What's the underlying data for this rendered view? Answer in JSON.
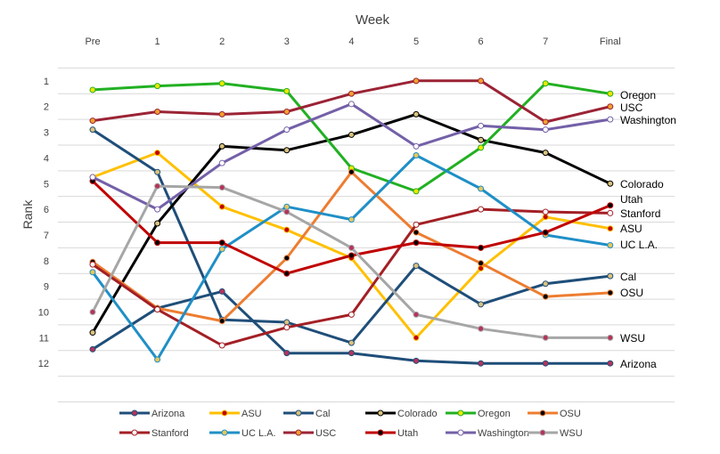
{
  "chart_data": {
    "type": "line",
    "title": "",
    "xlabel": "Week",
    "ylabel": "Rank",
    "x": [
      "Pre",
      "1",
      "2",
      "3",
      "4",
      "5",
      "6",
      "7",
      "Final"
    ],
    "yticks": [
      "1",
      "2",
      "3",
      "4",
      "5",
      "6",
      "7",
      "8",
      "9",
      "10",
      "11",
      "12"
    ],
    "ylim": [
      0.5,
      13.5
    ],
    "y_inverted": true,
    "grid": true,
    "legend_position": "bottom",
    "series": [
      {
        "name": "Arizona",
        "color": "#1f4e79",
        "marker_fill": "#b5335a",
        "end_label": "Arizona",
        "values": [
          11.45,
          9.85,
          9.2,
          11.6,
          11.6,
          11.9,
          12.0,
          12.0,
          12.0
        ]
      },
      {
        "name": "ASU",
        "color": "#ffc000",
        "marker_fill": "#c00000",
        "end_label": "ASU",
        "values": [
          4.75,
          3.8,
          5.9,
          6.8,
          7.9,
          11.0,
          8.3,
          6.3,
          6.75
        ]
      },
      {
        "name": "Cal",
        "color": "#1f4e79",
        "marker_fill": "#d9c27c",
        "end_label": "Cal",
        "values": [
          2.9,
          4.55,
          10.3,
          10.4,
          11.2,
          8.2,
          9.7,
          8.9,
          8.6
        ]
      },
      {
        "name": "Colorado",
        "color": "#000000",
        "marker_fill": "#d9c27c",
        "end_label": "Colorado",
        "values": [
          10.8,
          6.55,
          3.55,
          3.7,
          3.1,
          2.3,
          3.3,
          3.8,
          5.0
        ]
      },
      {
        "name": "Oregon",
        "color": "#22b022",
        "marker_fill": "#f2e600",
        "end_label": "Oregon",
        "values": [
          1.35,
          1.2,
          1.1,
          1.4,
          4.4,
          5.3,
          3.6,
          1.1,
          1.5
        ]
      },
      {
        "name": "OSU",
        "color": "#ed7d31",
        "marker_fill": "#000000",
        "end_label": "OSU",
        "values": [
          8.05,
          9.85,
          10.35,
          7.9,
          4.55,
          6.9,
          8.1,
          9.4,
          9.25
        ]
      },
      {
        "name": "Stanford",
        "color": "#a31f25",
        "marker_fill": "#ffffff",
        "end_label": "Stanford",
        "values": [
          8.15,
          9.9,
          11.3,
          10.6,
          10.1,
          6.6,
          6.0,
          6.1,
          6.15
        ]
      },
      {
        "name": "UC L.A.",
        "color": "#1f8fc6",
        "marker_fill": "#e7c65c",
        "end_label": "UC L.A.",
        "values": [
          8.45,
          11.85,
          7.55,
          5.9,
          6.4,
          3.9,
          5.2,
          7.0,
          7.4
        ]
      },
      {
        "name": "USC",
        "color": "#9b2335",
        "marker_fill": "#f0a030",
        "end_label": "USC",
        "values": [
          2.55,
          2.2,
          2.3,
          2.2,
          1.5,
          1.0,
          1.0,
          2.6,
          2.0
        ]
      },
      {
        "name": "Utah",
        "color": "#c00000",
        "marker_fill": "#000000",
        "end_label": "Utah",
        "values": [
          4.9,
          7.3,
          7.3,
          8.5,
          7.8,
          7.3,
          7.5,
          6.9,
          5.85
        ]
      },
      {
        "name": "Washington",
        "color": "#7460a8",
        "marker_fill": "#ffffff",
        "end_label": "Washington",
        "values": [
          4.75,
          6.0,
          4.2,
          2.9,
          1.9,
          3.55,
          2.75,
          2.9,
          2.5
        ]
      },
      {
        "name": "WSU",
        "color": "#a6a6a6",
        "marker_fill": "#b5335a",
        "end_label": "WSU",
        "values": [
          10.0,
          5.1,
          5.15,
          6.1,
          7.5,
          10.1,
          10.65,
          11.0,
          11.0
        ]
      }
    ]
  }
}
